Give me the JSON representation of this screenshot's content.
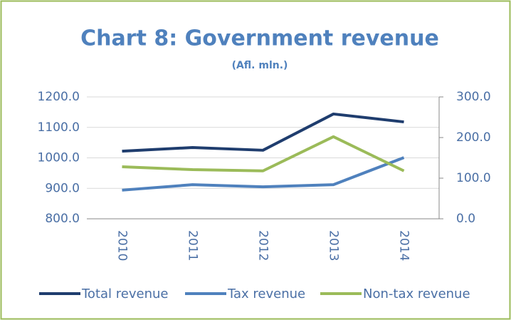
{
  "chart_data": {
    "type": "line",
    "title": "Chart 8: Government revenue",
    "subtitle": "(Afl. mln.)",
    "categories": [
      "2010",
      "2011",
      "2012",
      "2013",
      "2014"
    ],
    "series": [
      {
        "name": "Total revenue",
        "color": "#1f3d6e",
        "values": [
          1022,
          1034,
          1025,
          1144,
          1118
        ]
      },
      {
        "name": "Tax revenue",
        "color": "#4f81bd",
        "values": [
          894,
          912,
          905,
          912,
          1001
        ]
      },
      {
        "name": "Non-tax revenue",
        "color": "#9bbb59",
        "values": [
          128,
          121,
          118,
          202,
          118
        ],
        "axis": "y2"
      }
    ],
    "ylim": [
      800,
      1200
    ],
    "yticks": [
      {
        "value": 800,
        "label": "800.0"
      },
      {
        "value": 900,
        "label": "900.0"
      },
      {
        "value": 1000,
        "label": "1000.0"
      },
      {
        "value": 1100,
        "label": "1100.0"
      },
      {
        "value": 1200,
        "label": "1200.0"
      }
    ],
    "y2lim": [
      0,
      300
    ],
    "y2ticks": [
      {
        "value": 0,
        "label": "0.0"
      },
      {
        "value": 100,
        "label": "100.0"
      },
      {
        "value": 200,
        "label": "200.0"
      },
      {
        "value": 300,
        "label": "300.0"
      }
    ],
    "grid": true,
    "legend": "bottom"
  }
}
